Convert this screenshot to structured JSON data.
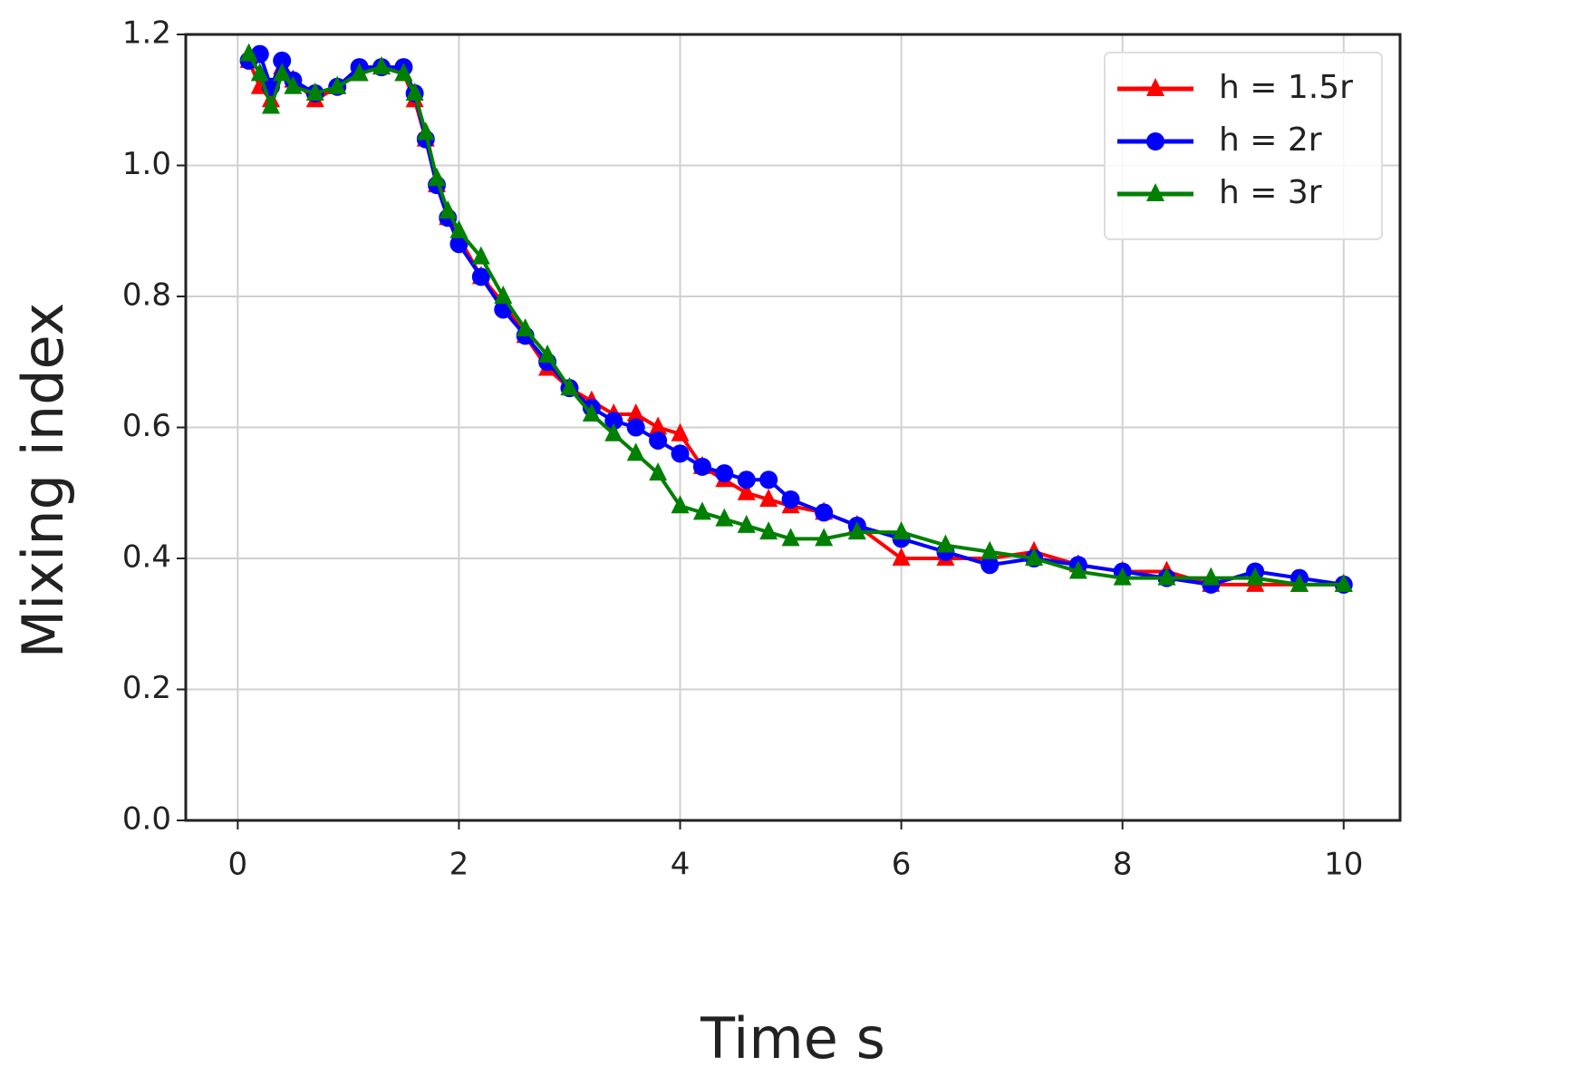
{
  "chart_data": {
    "type": "line",
    "xlabel": "Time s",
    "ylabel": "Mixing index",
    "x": [
      0.1,
      0.2,
      0.3,
      0.4,
      0.5,
      0.7,
      0.9,
      1.1,
      1.3,
      1.5,
      1.6,
      1.7,
      1.8,
      1.9,
      2.0,
      2.2,
      2.4,
      2.6,
      2.8,
      3.0,
      3.2,
      3.4,
      3.6,
      3.8,
      4.0,
      4.2,
      4.4,
      4.6,
      4.8,
      5.0,
      5.3,
      5.6,
      6.0,
      6.4,
      6.8,
      7.2,
      7.6,
      8.0,
      8.4,
      8.8,
      9.2,
      9.6,
      10.0
    ],
    "series": [
      {
        "name": "h = 1.5r",
        "color": "#ff0000",
        "marker": "triangle",
        "values": [
          1.16,
          1.12,
          1.1,
          1.15,
          1.13,
          1.1,
          1.12,
          1.14,
          1.15,
          1.14,
          1.1,
          1.04,
          0.97,
          0.92,
          0.89,
          0.83,
          0.79,
          0.74,
          0.69,
          0.66,
          0.64,
          0.62,
          0.62,
          0.6,
          0.59,
          0.54,
          0.52,
          0.5,
          0.49,
          0.48,
          0.47,
          0.45,
          0.4,
          0.4,
          0.4,
          0.41,
          0.39,
          0.38,
          0.38,
          0.36,
          0.36,
          0.36,
          0.36
        ]
      },
      {
        "name": "h = 2r",
        "color": "#0000ff",
        "marker": "circle",
        "values": [
          1.16,
          1.17,
          1.12,
          1.16,
          1.13,
          1.11,
          1.12,
          1.15,
          1.15,
          1.15,
          1.11,
          1.04,
          0.97,
          0.92,
          0.88,
          0.83,
          0.78,
          0.74,
          0.7,
          0.66,
          0.63,
          0.61,
          0.6,
          0.58,
          0.56,
          0.54,
          0.53,
          0.52,
          0.52,
          0.49,
          0.47,
          0.45,
          0.43,
          0.41,
          0.39,
          0.4,
          0.39,
          0.38,
          0.37,
          0.36,
          0.38,
          0.37,
          0.36
        ]
      },
      {
        "name": "h = 3r",
        "color": "#008000",
        "marker": "triangle",
        "values": [
          1.17,
          1.14,
          1.09,
          1.14,
          1.12,
          1.11,
          1.12,
          1.14,
          1.15,
          1.14,
          1.11,
          1.05,
          0.98,
          0.93,
          0.9,
          0.86,
          0.8,
          0.75,
          0.71,
          0.66,
          0.62,
          0.59,
          0.56,
          0.53,
          0.48,
          0.47,
          0.46,
          0.45,
          0.44,
          0.43,
          0.43,
          0.44,
          0.44,
          0.42,
          0.41,
          0.4,
          0.38,
          0.37,
          0.37,
          0.37,
          0.37,
          0.36,
          0.36
        ]
      }
    ],
    "xlim": [
      -0.47,
      10.51
    ],
    "ylim": [
      0,
      1.2
    ],
    "xticks": [
      0,
      2,
      4,
      6,
      8,
      10
    ],
    "yticks": [
      {
        "value": 0,
        "label": "0.0"
      },
      0.2,
      0.4,
      0.6,
      0.8,
      {
        "value": 1,
        "label": "1.0"
      },
      1.2
    ],
    "grid": true,
    "legend": "upper right"
  }
}
